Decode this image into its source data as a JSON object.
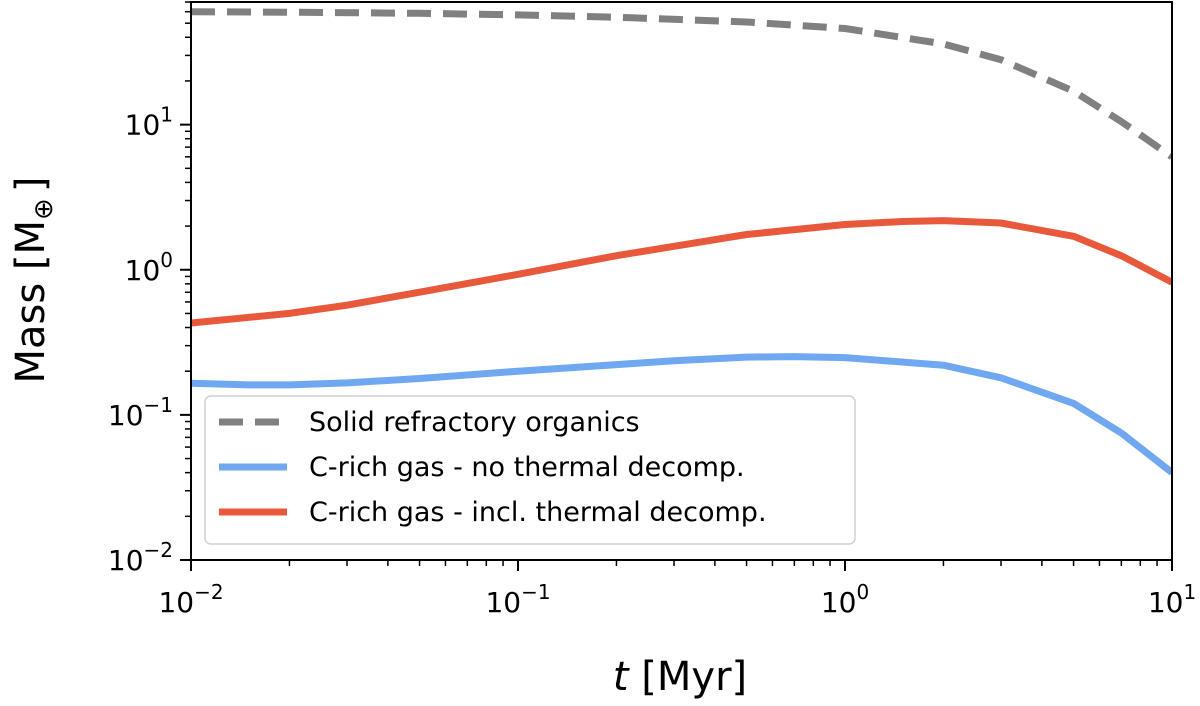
{
  "chart_data": {
    "type": "line",
    "x_scale": "log",
    "y_scale": "log",
    "xlim": [
      0.01,
      10
    ],
    "ylim": [
      0.01,
      70
    ],
    "xlabel_var": "t",
    "xlabel_unit": " [Myr]",
    "ylabel": "Mass [M",
    "ylabel_symbol": "⊕",
    "ylabel_close": "]",
    "legend_position": "lower-left",
    "x_ticks": [
      {
        "value": 0.01,
        "base": "10",
        "exp": "−2"
      },
      {
        "value": 0.1,
        "base": "10",
        "exp": "−1"
      },
      {
        "value": 1,
        "base": "10",
        "exp": "0"
      },
      {
        "value": 10,
        "base": "10",
        "exp": "1"
      }
    ],
    "y_ticks": [
      {
        "value": 0.01,
        "base": "10",
        "exp": "−2"
      },
      {
        "value": 0.1,
        "base": "10",
        "exp": "−1"
      },
      {
        "value": 1,
        "base": "10",
        "exp": "0"
      },
      {
        "value": 10,
        "base": "10",
        "exp": "1"
      }
    ],
    "series": [
      {
        "name": "Solid refractory organics",
        "color": "#808080",
        "style": "dashed",
        "x": [
          0.01,
          0.02,
          0.05,
          0.1,
          0.2,
          0.5,
          1,
          2,
          3,
          5,
          7,
          10
        ],
        "y": [
          60,
          59.5,
          58.5,
          57,
          55,
          51,
          46,
          36,
          28,
          17,
          10.5,
          6
        ]
      },
      {
        "name": "C-rich gas - no thermal decomp.",
        "color": "#6fa8f0",
        "style": "solid",
        "x": [
          0.01,
          0.015,
          0.02,
          0.03,
          0.05,
          0.1,
          0.2,
          0.3,
          0.5,
          0.7,
          1,
          2,
          3,
          5,
          7,
          10
        ],
        "y": [
          0.165,
          0.161,
          0.161,
          0.166,
          0.178,
          0.2,
          0.222,
          0.236,
          0.25,
          0.252,
          0.248,
          0.22,
          0.18,
          0.12,
          0.075,
          0.04
        ]
      },
      {
        "name": "C-rich gas - incl. thermal decomp.",
        "color": "#e8593c",
        "style": "solid",
        "x": [
          0.01,
          0.02,
          0.03,
          0.05,
          0.1,
          0.2,
          0.3,
          0.5,
          1,
          1.5,
          2,
          3,
          5,
          7,
          10
        ],
        "y": [
          0.43,
          0.5,
          0.57,
          0.7,
          0.93,
          1.25,
          1.45,
          1.75,
          2.05,
          2.15,
          2.18,
          2.1,
          1.7,
          1.25,
          0.82
        ]
      }
    ]
  }
}
